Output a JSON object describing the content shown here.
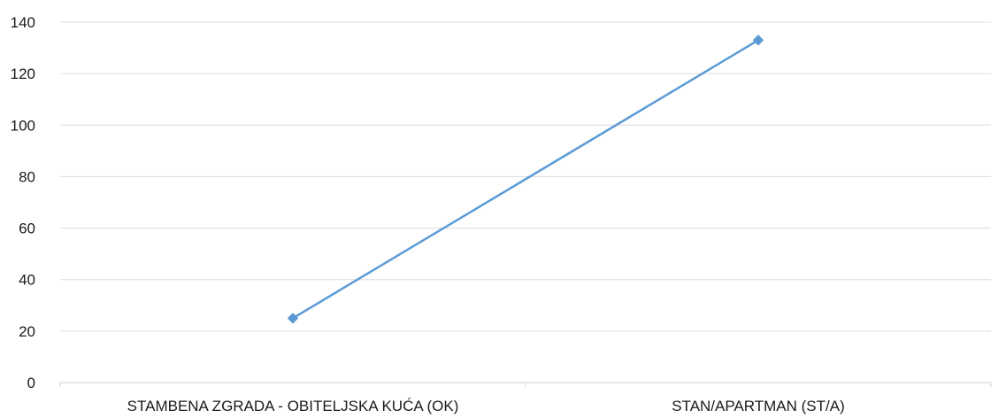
{
  "chart_data": {
    "type": "line",
    "categories": [
      "STAMBENA ZGRADA - OBITELJSKA KUĆA (OK)",
      "STAN/APARTMAN (ST/A)"
    ],
    "series": [
      {
        "values": [
          25,
          133
        ],
        "color": "#5b9bd5",
        "marker": "diamond"
      }
    ],
    "title": "",
    "xlabel": "",
    "ylabel": "",
    "ylim": [
      0,
      140
    ],
    "yticks": [
      "0",
      "20",
      "40",
      "60",
      "80",
      "100",
      "120",
      "140"
    ],
    "grid": true,
    "legend": "none"
  }
}
